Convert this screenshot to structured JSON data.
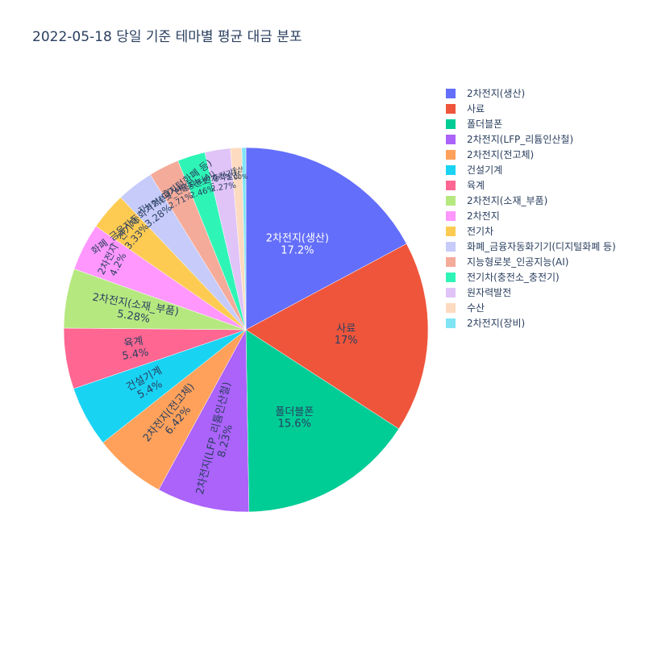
{
  "chart_data": {
    "type": "pie",
    "title": "2022-05-18 당일 기준 테마별 평균 대금 분포",
    "legend_position": "right",
    "slices": [
      {
        "label": "2차전지(생산)",
        "value": 17.2,
        "text": "17.2%",
        "color": "#636efa",
        "text_color": "#ffffff"
      },
      {
        "label": "사료",
        "value": 17.0,
        "text": "17%",
        "color": "#ef553b",
        "text_color": "#2a3f5f"
      },
      {
        "label": "폴더블폰",
        "value": 15.6,
        "text": "15.6%",
        "color": "#00cc96",
        "text_color": "#2a3f5f"
      },
      {
        "label": "2차전지(LFP_리튬인산철)",
        "value": 8.23,
        "text": "8.23%",
        "color": "#ab63fa",
        "text_color": "#2a3f5f"
      },
      {
        "label": "2차전지(전고체)",
        "value": 6.42,
        "text": "6.42%",
        "color": "#ffa15a",
        "text_color": "#2a3f5f"
      },
      {
        "label": "건설기계",
        "value": 5.4,
        "text": "5.4%",
        "color": "#19d3f3",
        "text_color": "#2a3f5f"
      },
      {
        "label": "육계",
        "value": 5.4,
        "text": "5.4%",
        "color": "#ff6692",
        "text_color": "#2a3f5f"
      },
      {
        "label": "2차전지(소재_부품)",
        "value": 5.28,
        "text": "5.28%",
        "color": "#b6e880",
        "text_color": "#2a3f5f"
      },
      {
        "label": "2차전지",
        "value": 4.2,
        "text": "4.2%",
        "color": "#ff97ff",
        "text_color": "#2a3f5f"
      },
      {
        "label": "전기차",
        "value": 3.33,
        "text": "3.33%",
        "color": "#fecb52",
        "text_color": "#2a3f5f"
      },
      {
        "label": "화폐_금융자동화기기(디지털화폐 등)",
        "value": 3.28,
        "text": "3.28%",
        "color": "#c7cbfa",
        "text_color": "#2a3f5f"
      },
      {
        "label": "지능형로봇_인공지능(AI)",
        "value": 2.71,
        "text": "2.71%",
        "color": "#f5ab9a",
        "text_color": "#2a3f5f"
      },
      {
        "label": "전기차(충전소_충전기)",
        "value": 2.46,
        "text": "2.46%",
        "color": "#2ef5b6",
        "text_color": "#2a3f5f"
      },
      {
        "label": "원자력발전",
        "value": 2.27,
        "text": "2.27%",
        "color": "#e0c3f7",
        "text_color": "#2a3f5f"
      },
      {
        "label": "수산",
        "value": 1.0,
        "text": "1.00%",
        "color": "#fddbc0",
        "text_color": "#2a3f5f"
      },
      {
        "label": "2차전지(장비)",
        "value": 0.36,
        "text": "",
        "color": "#80e4f5",
        "text_color": "#2a3f5f"
      }
    ]
  }
}
